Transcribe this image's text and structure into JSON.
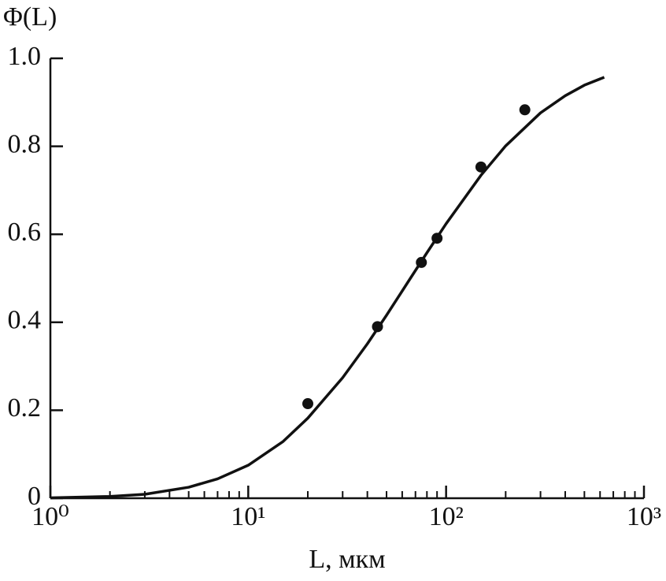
{
  "chart_data": {
    "type": "scatter",
    "ylabel": "Φ(L)",
    "xlabel": "L, мкм",
    "xscale": "log",
    "xlim": [
      1,
      1000
    ],
    "ylim": [
      0,
      1
    ],
    "xticks": [
      {
        "value": 1,
        "label": "10⁰"
      },
      {
        "value": 10,
        "label": "10¹"
      },
      {
        "value": 100,
        "label": "10²"
      },
      {
        "value": 1000,
        "label": "10³"
      }
    ],
    "xminor_ticks": [
      2,
      3,
      4,
      5,
      6,
      7,
      8,
      9,
      20,
      30,
      40,
      50,
      60,
      70,
      80,
      90,
      200,
      300,
      400,
      500,
      600,
      700,
      800,
      900
    ],
    "yticks": [
      0,
      0.2,
      0.4,
      0.6,
      0.8,
      {
        "value": 1,
        "label": "1.0"
      }
    ],
    "series": [
      {
        "type": "line",
        "color": "#111111",
        "x": [
          1,
          2,
          3,
          5,
          7,
          10,
          15,
          20,
          30,
          40,
          50,
          66,
          80,
          100,
          150,
          200,
          300,
          400,
          500,
          630
        ],
        "values": [
          0.001,
          0.004,
          0.009,
          0.025,
          0.044,
          0.075,
          0.129,
          0.182,
          0.274,
          0.351,
          0.416,
          0.5,
          0.558,
          0.624,
          0.734,
          0.801,
          0.876,
          0.915,
          0.939,
          0.957
        ]
      },
      {
        "type": "scatter",
        "color": "#111111",
        "x": [
          20,
          45,
          75,
          90,
          150,
          250
        ],
        "values": [
          0.215,
          0.39,
          0.536,
          0.591,
          0.753,
          0.883
        ]
      }
    ]
  }
}
